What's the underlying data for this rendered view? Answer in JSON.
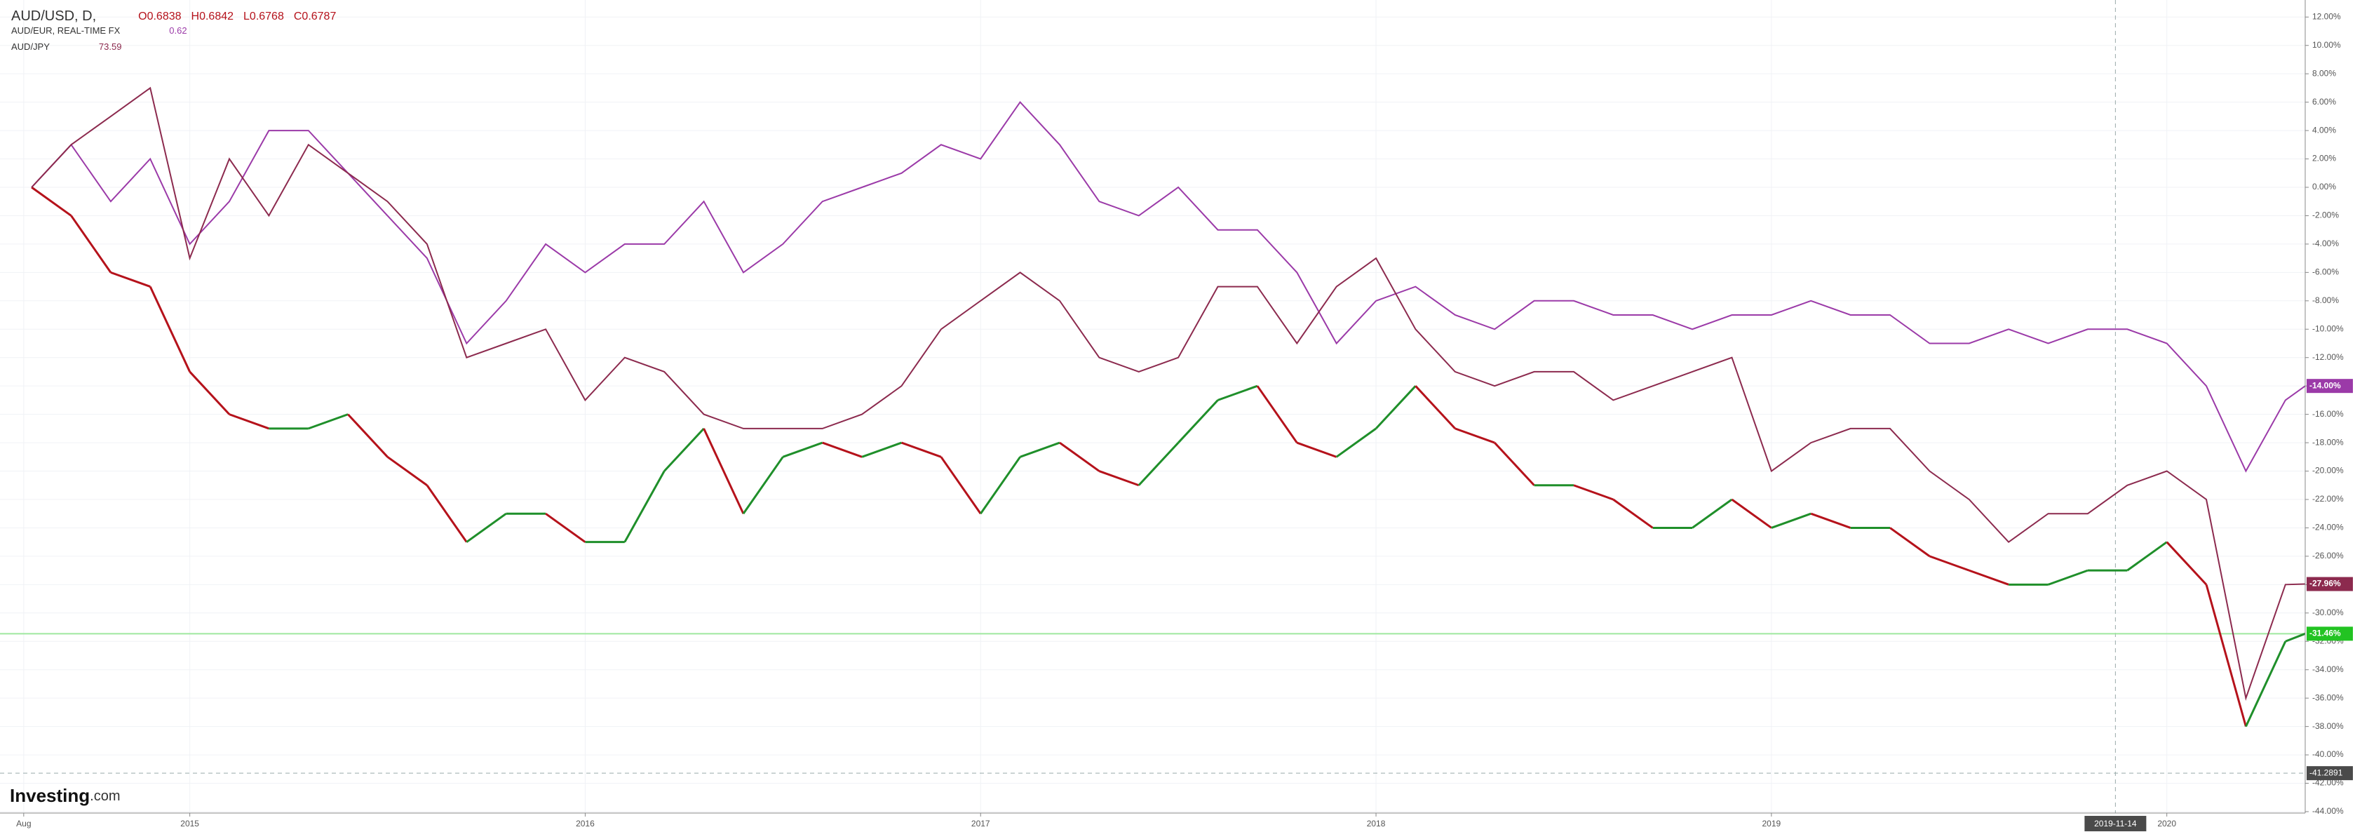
{
  "chart_data": {
    "type": "line",
    "x": [
      2014.6,
      2014.7,
      2014.8,
      2014.9,
      2015.0,
      2015.1,
      2015.2,
      2015.3,
      2015.4,
      2015.5,
      2015.6,
      2015.7,
      2015.8,
      2015.9,
      2016.0,
      2016.1,
      2016.2,
      2016.3,
      2016.4,
      2016.5,
      2016.6,
      2016.7,
      2016.8,
      2016.9,
      2017.0,
      2017.1,
      2017.2,
      2017.3,
      2017.4,
      2017.5,
      2017.6,
      2017.7,
      2017.8,
      2017.9,
      2018.0,
      2018.1,
      2018.2,
      2018.3,
      2018.4,
      2018.5,
      2018.6,
      2018.7,
      2018.8,
      2018.9,
      2019.0,
      2019.1,
      2019.2,
      2019.3,
      2019.4,
      2019.5,
      2019.6,
      2019.7,
      2019.8,
      2019.9,
      2020.0,
      2020.1,
      2020.2,
      2020.3,
      2020.35
    ],
    "series": [
      {
        "name": "AUD/USD, D,",
        "ohlc": [
          "O0.6838",
          "H0.6842",
          "L0.6768",
          "C0.6787"
        ],
        "color": "#22c322",
        "up_color": "#1f8f2a",
        "down_color": "#b5121b",
        "last_label": "-31.46%",
        "values": [
          0,
          -2,
          -6,
          -7,
          -13,
          -16,
          -17,
          -17,
          -16,
          -19,
          -21,
          -25,
          -23,
          -23,
          -25,
          -25,
          -20,
          -17,
          -23,
          -19,
          -18,
          -19,
          -18,
          -19,
          -23,
          -19,
          -18,
          -20,
          -21,
          -18,
          -15,
          -14,
          -18,
          -19,
          -17,
          -14,
          -17,
          -18,
          -21,
          -21,
          -22,
          -24,
          -24,
          -22,
          -24,
          -23,
          -24,
          -24,
          -26,
          -27,
          -28,
          -28,
          -27,
          -27,
          -25,
          -28,
          -38,
          -32,
          -31.46
        ]
      },
      {
        "name": "AUD/EUR, REAL-TIME FX",
        "quote": "0.62",
        "color": "#9b3aa8",
        "last_label": "-14.00%",
        "values": [
          0,
          3,
          -1,
          2,
          -4,
          -1,
          4,
          4,
          1,
          -2,
          -5,
          -11,
          -8,
          -4,
          -6,
          -4,
          -4,
          -1,
          -6,
          -4,
          -1,
          0,
          1,
          3,
          2,
          6,
          3,
          -1,
          -2,
          0,
          -3,
          -3,
          -6,
          -11,
          -8,
          -7,
          -9,
          -10,
          -8,
          -8,
          -9,
          -9,
          -10,
          -9,
          -9,
          -8,
          -9,
          -9,
          -11,
          -11,
          -10,
          -11,
          -10,
          -10,
          -11,
          -14,
          -20,
          -15,
          -14
        ]
      },
      {
        "name": "AUD/JPY",
        "quote": "73.59",
        "color": "#8c2a4e",
        "last_label": "-27.96%",
        "values": [
          0,
          3,
          5,
          7,
          -5,
          2,
          -2,
          3,
          1,
          -1,
          -4,
          -12,
          -11,
          -10,
          -15,
          -12,
          -13,
          -16,
          -17,
          -17,
          -17,
          -16,
          -14,
          -10,
          -8,
          -6,
          -8,
          -12,
          -13,
          -12,
          -7,
          -7,
          -11,
          -7,
          -5,
          -10,
          -13,
          -14,
          -13,
          -13,
          -15,
          -14,
          -13,
          -12,
          -20,
          -18,
          -17,
          -17,
          -20,
          -22,
          -25,
          -23,
          -23,
          -21,
          -20,
          -22,
          -36,
          -28,
          -27.96
        ]
      }
    ],
    "xlim": [
      2014.52,
      2020.35
    ],
    "xticks": [
      {
        "value": 2014.58,
        "label": "Aug"
      },
      2015,
      2016,
      2017,
      2018,
      2019,
      2020
    ],
    "ylim": [
      -44.1,
      13.2
    ],
    "yticks": [
      {
        "value": 12,
        "label": "12.00%"
      },
      {
        "value": 10,
        "label": "10.00%"
      },
      {
        "value": 8,
        "label": "8.00%"
      },
      {
        "value": 6,
        "label": "6.00%"
      },
      {
        "value": 4,
        "label": "4.00%"
      },
      {
        "value": 2,
        "label": "2.00%"
      },
      {
        "value": 0,
        "label": "0.00%"
      },
      {
        "value": -2,
        "label": "-2.00%"
      },
      {
        "value": -4,
        "label": "-4.00%"
      },
      {
        "value": -6,
        "label": "-6.00%"
      },
      {
        "value": -8,
        "label": "-8.00%"
      },
      {
        "value": -10,
        "label": "-10.00%"
      },
      {
        "value": -12,
        "label": "-12.00%"
      },
      {
        "value": -14,
        "label": "-14.00%"
      },
      {
        "value": -16,
        "label": "-16.00%"
      },
      {
        "value": -18,
        "label": "-18.00%"
      },
      {
        "value": -20,
        "label": "-20.00%"
      },
      {
        "value": -22,
        "label": "-22.00%"
      },
      {
        "value": -24,
        "label": "-24.00%"
      },
      {
        "value": -26,
        "label": "-26.00%"
      },
      {
        "value": -28,
        "label": "-28.00%"
      },
      {
        "value": -30,
        "label": "-30.00%"
      },
      {
        "value": -32,
        "label": "-32.00%"
      },
      {
        "value": -34,
        "label": "-34.00%"
      },
      {
        "value": -36,
        "label": "-36.00%"
      },
      {
        "value": -38,
        "label": "-38.00%"
      },
      {
        "value": -40,
        "label": "-40.00%"
      },
      {
        "value": -42,
        "label": "-42.00%"
      },
      {
        "value": -44,
        "label": "-44.00%"
      }
    ],
    "crosshair": {
      "x": {
        "value": 2019.87,
        "label": "2019-11-14"
      },
      "y": {
        "value": -41.2891,
        "label": "-41.2891"
      }
    },
    "grid": true,
    "logo": "Investing",
    "logo_suffix": ".com"
  }
}
